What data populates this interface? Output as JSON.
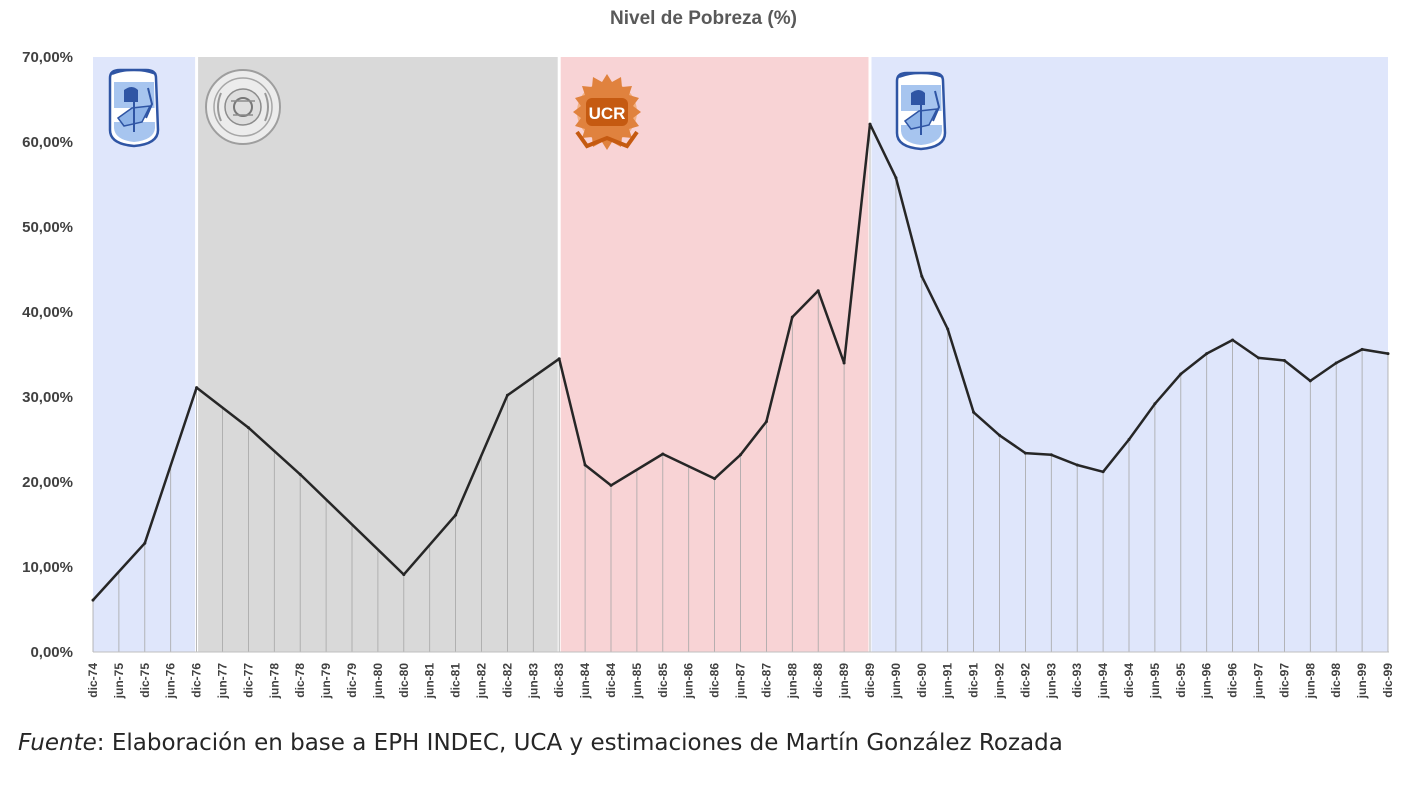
{
  "chart_data": {
    "type": "line",
    "title": "Nivel de Pobreza (%)",
    "xlabel": "",
    "ylabel": "",
    "ylim": [
      0,
      70
    ],
    "y_ticks": [
      "0,00%",
      "10,00%",
      "20,00%",
      "30,00%",
      "40,00%",
      "50,00%",
      "60,00%",
      "70,00%"
    ],
    "categories": [
      "dic-74",
      "jun-75",
      "dic-75",
      "jun-76",
      "dic-76",
      "jun-77",
      "dic-77",
      "jun-78",
      "dic-78",
      "jun-79",
      "dic-79",
      "jun-80",
      "dic-80",
      "jun-81",
      "dic-81",
      "jun-82",
      "dic-82",
      "jun-83",
      "dic-83",
      "jun-84",
      "dic-84",
      "jun-85",
      "dic-85",
      "jun-86",
      "dic-86",
      "jun-87",
      "dic-87",
      "jun-88",
      "dic-88",
      "jun-89",
      "dic-89",
      "jun-90",
      "dic-90",
      "jun-91",
      "dic-91",
      "jun-92",
      "dic-92",
      "jun-93",
      "dic-93",
      "jun-94",
      "dic-94",
      "jun-95",
      "dic-95",
      "jun-96",
      "dic-96",
      "jun-97",
      "dic-97",
      "jun-98",
      "dic-98",
      "jun-99",
      "dic-99"
    ],
    "values": [
      6.1,
      null,
      12.8,
      null,
      31.1,
      null,
      26.4,
      null,
      20.9,
      null,
      null,
      null,
      9.1,
      null,
      16.1,
      null,
      30.2,
      null,
      34.5,
      22.0,
      19.6,
      null,
      23.3,
      null,
      20.4,
      23.2,
      27.1,
      39.4,
      42.5,
      34.0,
      62.1,
      55.8,
      44.2,
      38.0,
      28.2,
      25.5,
      23.4,
      23.2,
      22.0,
      21.2,
      25.0,
      29.2,
      32.7,
      35.1,
      36.7,
      34.6,
      34.3,
      31.9,
      34.0,
      35.6,
      35.1
    ],
    "periods": [
      {
        "from": 0,
        "to": 4,
        "color": "#dfe6fb",
        "logo": "justicialista-logo"
      },
      {
        "from": 4,
        "to": 18,
        "color": "#d9d9d9",
        "logo": "ejercito-argentino-logo"
      },
      {
        "from": 18,
        "to": 30,
        "color": "#f8d3d5",
        "logo": "ucr-logo"
      },
      {
        "from": 30,
        "to": 50,
        "color": "#dfe6fb",
        "logo": "justicialista-logo"
      }
    ],
    "ucr_logo_text": "UCR",
    "line_color": "#262626",
    "grid": false,
    "legend": "none"
  },
  "source": {
    "prefix": "Fuente",
    "text": ": Elaboración en base a EPH INDEC, UCA y estimaciones de Martín González Rozada"
  }
}
